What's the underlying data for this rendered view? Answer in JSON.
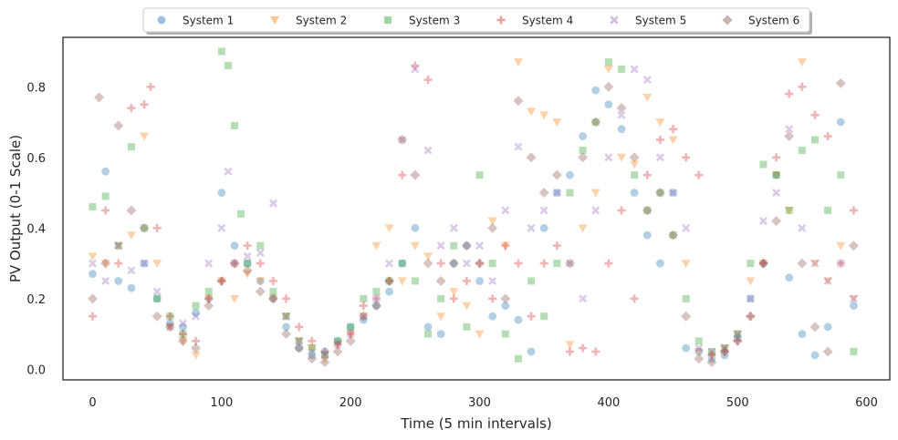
{
  "chart_data": {
    "type": "scatter",
    "title": "",
    "xlabel": "Time (5 min intervals)",
    "ylabel": "PV Output (0-1 Scale)",
    "xlim": [
      -23,
      618
    ],
    "ylim": [
      -0.03,
      0.94
    ],
    "x_ticks": [
      0,
      100,
      200,
      300,
      400,
      500,
      600
    ],
    "y_ticks": [
      0.0,
      0.2,
      0.4,
      0.6,
      0.8
    ],
    "grid": false,
    "legend": {
      "placement": "top-center",
      "columns": 6
    },
    "point_alpha": 0.35,
    "series": [
      {
        "name": "System 1",
        "marker": "circle",
        "color": "#1f77b4",
        "x": [
          0,
          10,
          20,
          30,
          40,
          50,
          60,
          70,
          80,
          90,
          100,
          110,
          120,
          130,
          140,
          150,
          160,
          170,
          180,
          190,
          200,
          210,
          220,
          230,
          240,
          250,
          260,
          270,
          280,
          290,
          300,
          310,
          320,
          330,
          340,
          350,
          360,
          370,
          380,
          390,
          400,
          410,
          420,
          430,
          440,
          450,
          460,
          470,
          480,
          490,
          500,
          510,
          520,
          530,
          540,
          550,
          560,
          570,
          580,
          590
        ],
        "values": [
          0.27,
          0.56,
          0.25,
          0.23,
          0.3,
          0.2,
          0.13,
          0.12,
          0.16,
          0.2,
          0.5,
          0.35,
          0.3,
          0.25,
          0.2,
          0.12,
          0.06,
          0.04,
          0.05,
          0.08,
          0.12,
          0.14,
          0.18,
          0.22,
          0.3,
          0.4,
          0.12,
          0.1,
          0.3,
          0.35,
          0.25,
          0.15,
          0.18,
          0.14,
          0.05,
          0.4,
          0.5,
          0.55,
          0.66,
          0.79,
          0.75,
          0.68,
          0.5,
          0.38,
          0.3,
          0.5,
          0.06,
          0.05,
          0.03,
          0.04,
          0.09,
          0.2,
          0.3,
          0.55,
          0.26,
          0.1,
          0.04,
          0.12,
          0.7,
          0.18
        ]
      },
      {
        "name": "System 2",
        "marker": "triangle-down",
        "color": "#ff7f0e",
        "x": [
          0,
          10,
          20,
          30,
          40,
          50,
          60,
          70,
          80,
          90,
          100,
          110,
          120,
          130,
          140,
          150,
          160,
          170,
          180,
          190,
          200,
          210,
          220,
          230,
          240,
          250,
          260,
          270,
          280,
          290,
          300,
          310,
          320,
          330,
          340,
          350,
          360,
          370,
          380,
          390,
          400,
          410,
          420,
          430,
          440,
          450,
          460,
          470,
          480,
          490,
          500,
          510,
          520,
          530,
          540,
          550,
          560,
          570,
          580,
          590
        ],
        "values": [
          0.32,
          0.3,
          0.35,
          0.38,
          0.66,
          0.3,
          0.12,
          0.08,
          0.04,
          0.2,
          0.25,
          0.2,
          0.27,
          0.25,
          0.2,
          0.15,
          0.08,
          0.06,
          0.03,
          0.07,
          0.1,
          0.15,
          0.35,
          0.4,
          0.25,
          0.35,
          0.32,
          0.15,
          0.22,
          0.18,
          0.1,
          0.42,
          0.35,
          0.87,
          0.73,
          0.72,
          0.7,
          0.07,
          0.4,
          0.5,
          0.85,
          0.6,
          0.58,
          0.77,
          0.7,
          0.65,
          0.3,
          0.05,
          0.04,
          0.06,
          0.1,
          0.25,
          0.3,
          0.55,
          0.45,
          0.87,
          0.3,
          0.25,
          0.35,
          0.2
        ]
      },
      {
        "name": "System 3",
        "marker": "square",
        "color": "#2ca02c",
        "x": [
          0,
          10,
          20,
          30,
          40,
          50,
          60,
          70,
          80,
          90,
          100,
          105,
          110,
          115,
          120,
          130,
          140,
          150,
          160,
          170,
          180,
          190,
          200,
          210,
          220,
          230,
          240,
          250,
          260,
          270,
          280,
          290,
          300,
          310,
          320,
          330,
          340,
          350,
          360,
          370,
          380,
          390,
          400,
          410,
          420,
          430,
          440,
          450,
          460,
          470,
          480,
          490,
          500,
          510,
          520,
          530,
          540,
          550,
          560,
          570,
          580,
          590
        ],
        "values": [
          0.46,
          0.49,
          0.35,
          0.63,
          0.4,
          0.2,
          0.15,
          0.1,
          0.18,
          0.22,
          0.9,
          0.86,
          0.69,
          0.44,
          0.3,
          0.35,
          0.22,
          0.15,
          0.08,
          0.06,
          0.04,
          0.08,
          0.12,
          0.2,
          0.22,
          0.25,
          0.3,
          0.25,
          0.1,
          0.2,
          0.35,
          0.12,
          0.55,
          0.3,
          0.1,
          0.03,
          0.25,
          0.15,
          0.3,
          0.5,
          0.62,
          0.7,
          0.87,
          0.85,
          0.55,
          0.45,
          0.5,
          0.38,
          0.2,
          0.08,
          0.05,
          0.06,
          0.1,
          0.3,
          0.58,
          0.55,
          0.45,
          0.62,
          0.65,
          0.45,
          0.55,
          0.05
        ]
      },
      {
        "name": "System 4",
        "marker": "plus",
        "color": "#d62728",
        "x": [
          0,
          10,
          20,
          30,
          40,
          45,
          50,
          60,
          70,
          80,
          90,
          100,
          110,
          120,
          130,
          140,
          150,
          160,
          170,
          180,
          190,
          200,
          210,
          220,
          230,
          240,
          250,
          260,
          270,
          280,
          290,
          300,
          310,
          320,
          330,
          340,
          350,
          360,
          370,
          380,
          390,
          400,
          410,
          420,
          430,
          440,
          450,
          460,
          470,
          480,
          490,
          500,
          510,
          520,
          530,
          540,
          550,
          560,
          570,
          580,
          590
        ],
        "values": [
          0.15,
          0.45,
          0.3,
          0.74,
          0.75,
          0.8,
          0.4,
          0.15,
          0.1,
          0.08,
          0.2,
          0.25,
          0.3,
          0.35,
          0.3,
          0.25,
          0.2,
          0.12,
          0.08,
          0.05,
          0.07,
          0.1,
          0.18,
          0.2,
          0.25,
          0.55,
          0.86,
          0.82,
          0.3,
          0.2,
          0.25,
          0.3,
          0.2,
          0.35,
          0.3,
          0.15,
          0.3,
          0.35,
          0.05,
          0.06,
          0.05,
          0.3,
          0.45,
          0.2,
          0.55,
          0.65,
          0.68,
          0.6,
          0.55,
          0.04,
          0.05,
          0.08,
          0.15,
          0.3,
          0.6,
          0.78,
          0.8,
          0.72,
          0.66,
          0.3,
          0.45
        ]
      },
      {
        "name": "System 5",
        "marker": "x-thick",
        "color": "#9467bd",
        "x": [
          0,
          10,
          20,
          30,
          40,
          50,
          60,
          70,
          80,
          90,
          100,
          105,
          110,
          120,
          130,
          140,
          150,
          160,
          170,
          180,
          190,
          200,
          210,
          220,
          230,
          240,
          250,
          260,
          270,
          280,
          290,
          300,
          310,
          320,
          330,
          340,
          350,
          360,
          370,
          380,
          390,
          400,
          410,
          420,
          430,
          440,
          450,
          460,
          470,
          480,
          490,
          500,
          510,
          520,
          530,
          540,
          550,
          560,
          570,
          580,
          590
        ],
        "values": [
          0.3,
          0.25,
          0.35,
          0.28,
          0.3,
          0.22,
          0.12,
          0.13,
          0.15,
          0.3,
          0.4,
          0.56,
          0.3,
          0.32,
          0.33,
          0.47,
          0.15,
          0.08,
          0.05,
          0.04,
          0.07,
          0.1,
          0.15,
          0.2,
          0.3,
          0.65,
          0.85,
          0.62,
          0.35,
          0.4,
          0.3,
          0.35,
          0.25,
          0.45,
          0.63,
          0.4,
          0.45,
          0.5,
          0.3,
          0.2,
          0.45,
          0.6,
          0.72,
          0.85,
          0.82,
          0.6,
          0.5,
          0.4,
          0.06,
          0.05,
          0.06,
          0.1,
          0.2,
          0.42,
          0.5,
          0.68,
          0.4,
          0.3,
          0.25,
          0.3,
          0.2
        ]
      },
      {
        "name": "System 6",
        "marker": "diamond",
        "color": "#8c564b",
        "x": [
          0,
          5,
          10,
          20,
          30,
          40,
          50,
          60,
          70,
          80,
          90,
          100,
          110,
          120,
          130,
          140,
          150,
          160,
          170,
          180,
          190,
          200,
          210,
          220,
          230,
          240,
          250,
          260,
          270,
          280,
          290,
          300,
          310,
          320,
          330,
          340,
          350,
          360,
          370,
          380,
          390,
          400,
          410,
          420,
          430,
          440,
          450,
          460,
          470,
          480,
          490,
          500,
          510,
          520,
          530,
          540,
          550,
          560,
          570,
          580,
          590
        ],
        "values": [
          0.2,
          0.77,
          0.3,
          0.69,
          0.45,
          0.4,
          0.15,
          0.12,
          0.08,
          0.06,
          0.18,
          0.25,
          0.3,
          0.28,
          0.22,
          0.2,
          0.1,
          0.06,
          0.03,
          0.02,
          0.05,
          0.08,
          0.15,
          0.18,
          0.25,
          0.65,
          0.55,
          0.3,
          0.25,
          0.3,
          0.35,
          0.3,
          0.4,
          0.2,
          0.76,
          0.6,
          0.5,
          0.55,
          0.3,
          0.6,
          0.7,
          0.8,
          0.74,
          0.6,
          0.45,
          0.5,
          0.38,
          0.15,
          0.03,
          0.02,
          0.05,
          0.08,
          0.15,
          0.3,
          0.42,
          0.66,
          0.3,
          0.12,
          0.05,
          0.81,
          0.35
        ]
      }
    ]
  }
}
